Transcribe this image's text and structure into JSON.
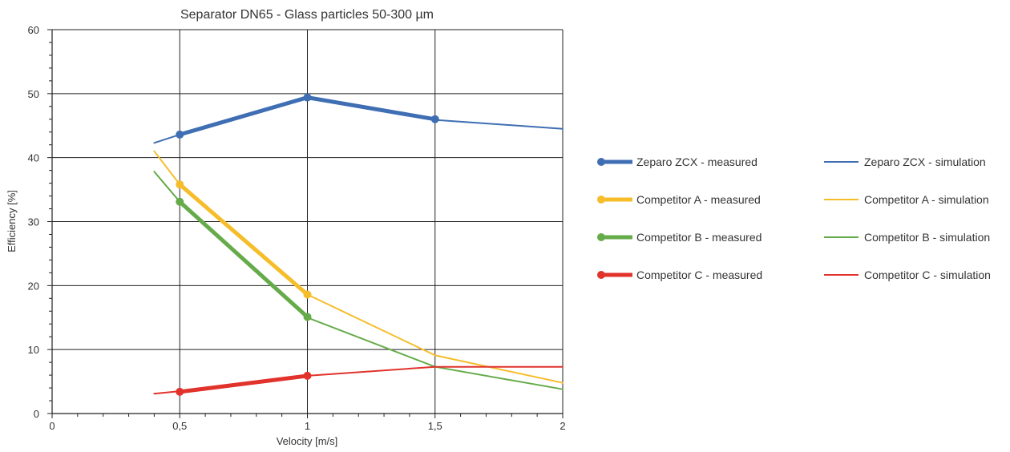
{
  "chart_data": {
    "type": "line",
    "title": "Separator DN65 - Glass particles 50-300 µm",
    "xlabel": "Velocity [m/s]",
    "ylabel": "Efficiency [%]",
    "xlim": [
      0,
      2
    ],
    "ylim": [
      0,
      60
    ],
    "x_ticks": [
      {
        "value": 0,
        "label": "0"
      },
      {
        "value": 0.5,
        "label": "0,5"
      },
      {
        "value": 1,
        "label": "1"
      },
      {
        "value": 1.5,
        "label": "1,5"
      },
      {
        "value": 2,
        "label": "2"
      }
    ],
    "y_ticks": [
      {
        "value": 0,
        "label": "0"
      },
      {
        "value": 10,
        "label": "10"
      },
      {
        "value": 20,
        "label": "20"
      },
      {
        "value": 30,
        "label": "30"
      },
      {
        "value": 40,
        "label": "40"
      },
      {
        "value": 50,
        "label": "50"
      },
      {
        "value": 60,
        "label": "60"
      }
    ],
    "grid": true,
    "legend_position": "right",
    "series": [
      {
        "name": "Zeparo ZCX - measured",
        "color": "#3f6eb3",
        "style": "measured",
        "x": [
          0.5,
          1,
          1.5
        ],
        "y": [
          43.6,
          49.4,
          46.0
        ]
      },
      {
        "name": "Zeparo ZCX - simulation",
        "color": "#3f6eb3",
        "style": "simulation",
        "x": [
          0.4,
          0.5,
          1,
          1.5,
          2
        ],
        "y": [
          42.3,
          43.6,
          49.4,
          45.9,
          44.5
        ]
      },
      {
        "name": "Competitor A - measured",
        "color": "#f6bd2a",
        "style": "measured",
        "x": [
          0.5,
          1
        ],
        "y": [
          35.8,
          18.6
        ]
      },
      {
        "name": "Competitor A - simulation",
        "color": "#f6bd2a",
        "style": "simulation",
        "x": [
          0.4,
          0.5,
          1,
          1.5,
          2
        ],
        "y": [
          41.0,
          35.8,
          18.6,
          9.1,
          4.8
        ]
      },
      {
        "name": "Competitor B - measured",
        "color": "#66ab4a",
        "style": "measured",
        "x": [
          0.5,
          1
        ],
        "y": [
          33.1,
          15.1
        ]
      },
      {
        "name": "Competitor B - simulation",
        "color": "#66ab4a",
        "style": "simulation",
        "x": [
          0.4,
          0.5,
          1,
          1.5,
          2
        ],
        "y": [
          37.8,
          33.1,
          15.0,
          7.3,
          3.8
        ]
      },
      {
        "name": "Competitor C - measured",
        "color": "#e1322b",
        "style": "measured",
        "x": [
          0.5,
          1
        ],
        "y": [
          3.4,
          5.9
        ]
      },
      {
        "name": "Competitor C - simulation",
        "color": "#e1322b",
        "style": "simulation",
        "x": [
          0.4,
          0.5,
          1,
          1.5,
          2
        ],
        "y": [
          3.1,
          3.5,
          5.9,
          7.3,
          7.3
        ]
      }
    ]
  }
}
